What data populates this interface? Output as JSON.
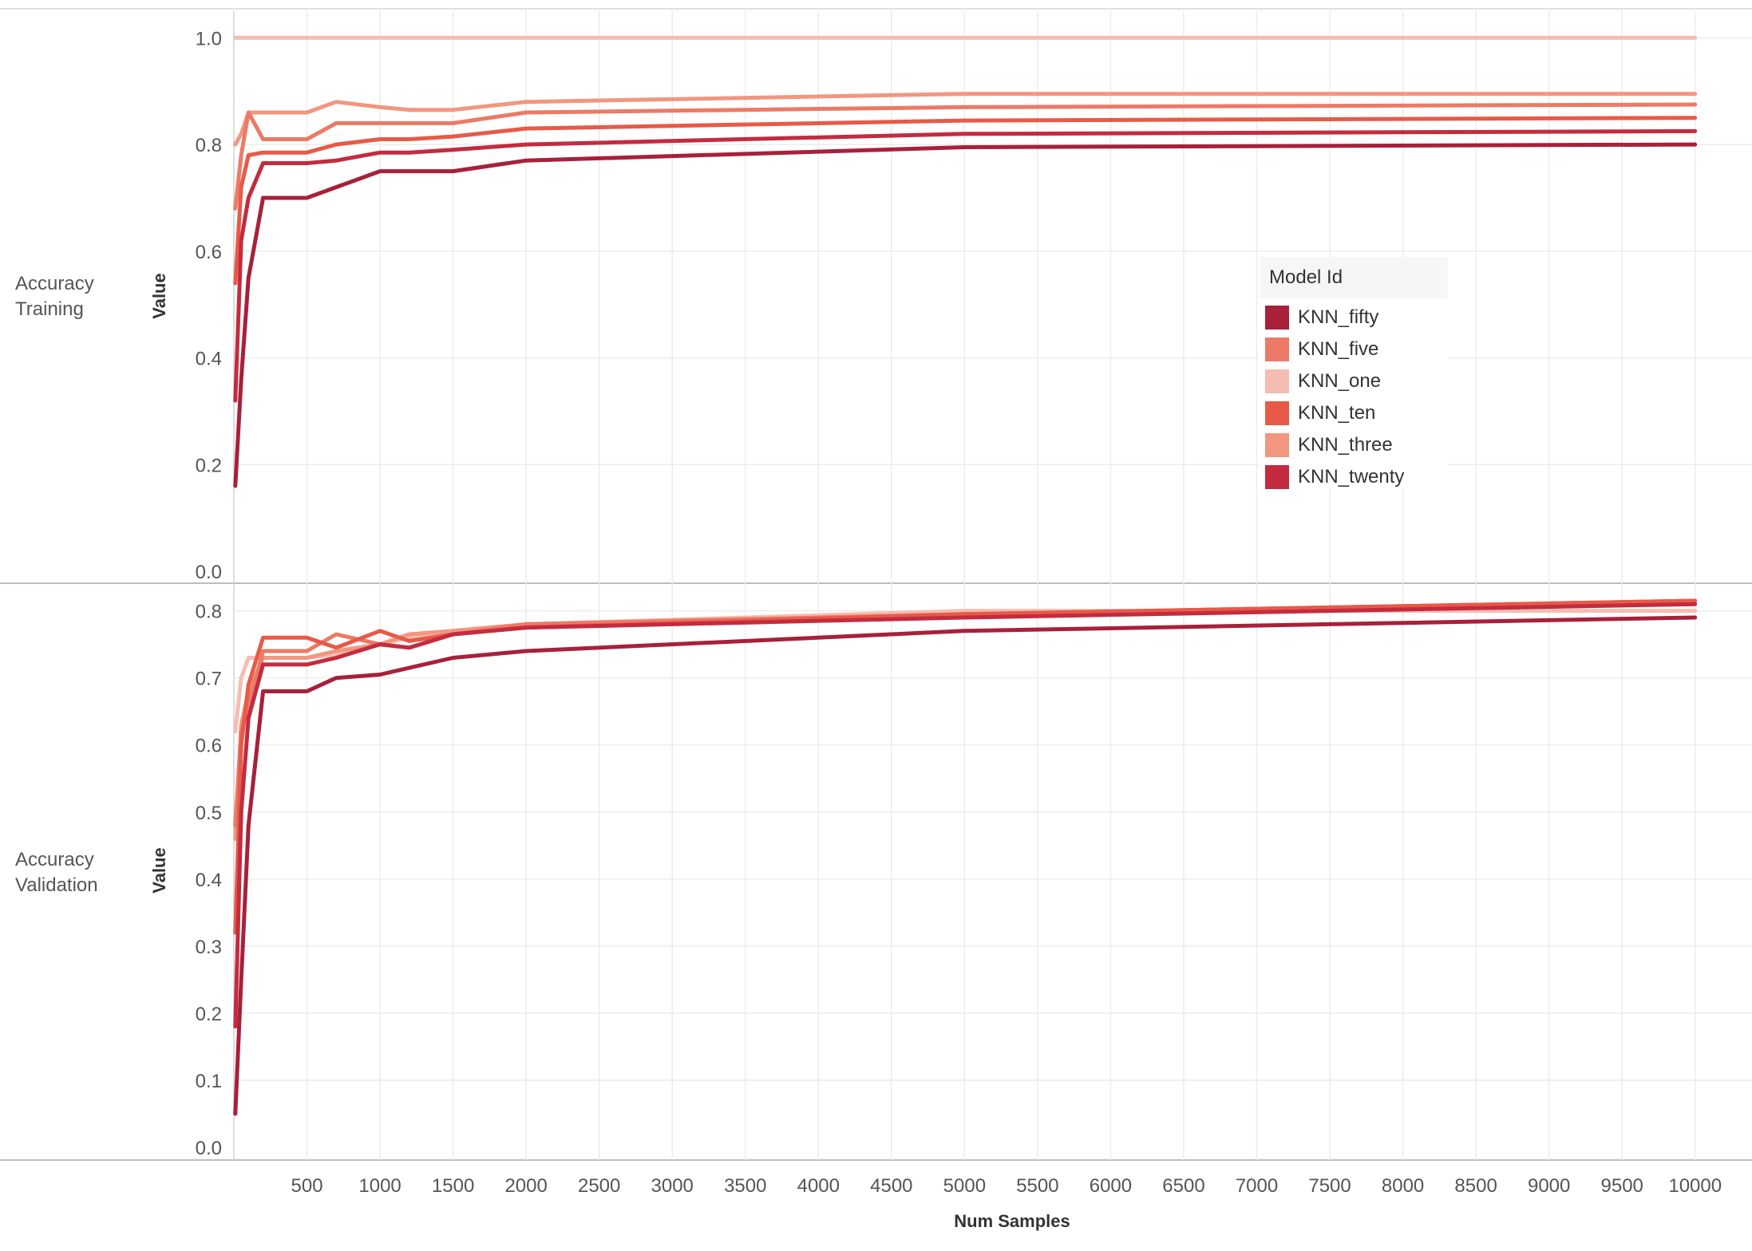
{
  "chart_data": {
    "type": "line",
    "xlabel": "Num Samples",
    "x_ticks": [
      500,
      1000,
      1500,
      2000,
      2500,
      3000,
      3500,
      4000,
      4500,
      5000,
      5500,
      6000,
      6500,
      7000,
      7500,
      8000,
      8500,
      9000,
      9500,
      10000
    ],
    "x": [
      10,
      50,
      100,
      200,
      500,
      700,
      1000,
      1200,
      1500,
      2000,
      5000,
      10000
    ],
    "legend": {
      "title": "Model Id",
      "position": "right"
    },
    "series_colors": {
      "KNN_fifty": "#a8203a",
      "KNN_five": "#ec7a66",
      "KNN_one": "#f5bdb2",
      "KNN_ten": "#e75a48",
      "KNN_three": "#f29680",
      "KNN_twenty": "#c42b3f"
    },
    "panels": [
      {
        "row_label": "Accuracy Training",
        "ylabel": "Value",
        "ylim": [
          0,
          1.05
        ],
        "y_ticks": [
          "0.0",
          "0.2",
          "0.4",
          "0.6",
          "0.8",
          "1.0"
        ],
        "series": [
          {
            "name": "KNN_fifty",
            "values": [
              0.16,
              0.36,
              0.55,
              0.7,
              0.7,
              0.72,
              0.75,
              0.75,
              0.75,
              0.77,
              0.795,
              0.8
            ]
          },
          {
            "name": "KNN_five",
            "values": [
              0.68,
              0.78,
              0.86,
              0.81,
              0.81,
              0.84,
              0.84,
              0.84,
              0.84,
              0.86,
              0.87,
              0.875
            ]
          },
          {
            "name": "KNN_one",
            "values": [
              1.0,
              1.0,
              1.0,
              1.0,
              1.0,
              1.0,
              1.0,
              1.0,
              1.0,
              1.0,
              1.0,
              1.0
            ]
          },
          {
            "name": "KNN_ten",
            "values": [
              0.54,
              0.72,
              0.78,
              0.785,
              0.785,
              0.8,
              0.81,
              0.81,
              0.815,
              0.83,
              0.845,
              0.85
            ]
          },
          {
            "name": "KNN_three",
            "values": [
              0.8,
              0.82,
              0.86,
              0.86,
              0.86,
              0.88,
              0.87,
              0.865,
              0.865,
              0.88,
              0.895,
              0.895
            ]
          },
          {
            "name": "KNN_twenty",
            "values": [
              0.32,
              0.62,
              0.7,
              0.765,
              0.765,
              0.77,
              0.785,
              0.785,
              0.79,
              0.8,
              0.82,
              0.825
            ]
          }
        ]
      },
      {
        "row_label": "Accuracy Validation",
        "ylabel": "Value",
        "ylim": [
          0,
          0.84
        ],
        "y_ticks": [
          "0.0",
          "0.1",
          "0.2",
          "0.3",
          "0.4",
          "0.5",
          "0.6",
          "0.7",
          "0.8"
        ],
        "series": [
          {
            "name": "KNN_fifty",
            "values": [
              0.05,
              0.25,
              0.48,
              0.68,
              0.68,
              0.7,
              0.705,
              0.715,
              0.73,
              0.74,
              0.77,
              0.79
            ]
          },
          {
            "name": "KNN_five",
            "values": [
              0.48,
              0.62,
              0.66,
              0.74,
              0.74,
              0.765,
              0.75,
              0.745,
              0.765,
              0.78,
              0.795,
              0.815
            ]
          },
          {
            "name": "KNN_one",
            "values": [
              0.62,
              0.7,
              0.73,
              0.73,
              0.73,
              0.735,
              0.75,
              0.76,
              0.77,
              0.78,
              0.8,
              0.8
            ]
          },
          {
            "name": "KNN_ten",
            "values": [
              0.32,
              0.6,
              0.69,
              0.76,
              0.76,
              0.745,
              0.77,
              0.755,
              0.765,
              0.775,
              0.795,
              0.815
            ]
          },
          {
            "name": "KNN_three",
            "values": [
              0.46,
              0.63,
              0.68,
              0.73,
              0.73,
              0.74,
              0.75,
              0.765,
              0.77,
              0.78,
              0.795,
              0.81
            ]
          },
          {
            "name": "KNN_twenty",
            "values": [
              0.18,
              0.5,
              0.64,
              0.72,
              0.72,
              0.73,
              0.75,
              0.745,
              0.765,
              0.775,
              0.79,
              0.81
            ]
          }
        ]
      }
    ]
  }
}
